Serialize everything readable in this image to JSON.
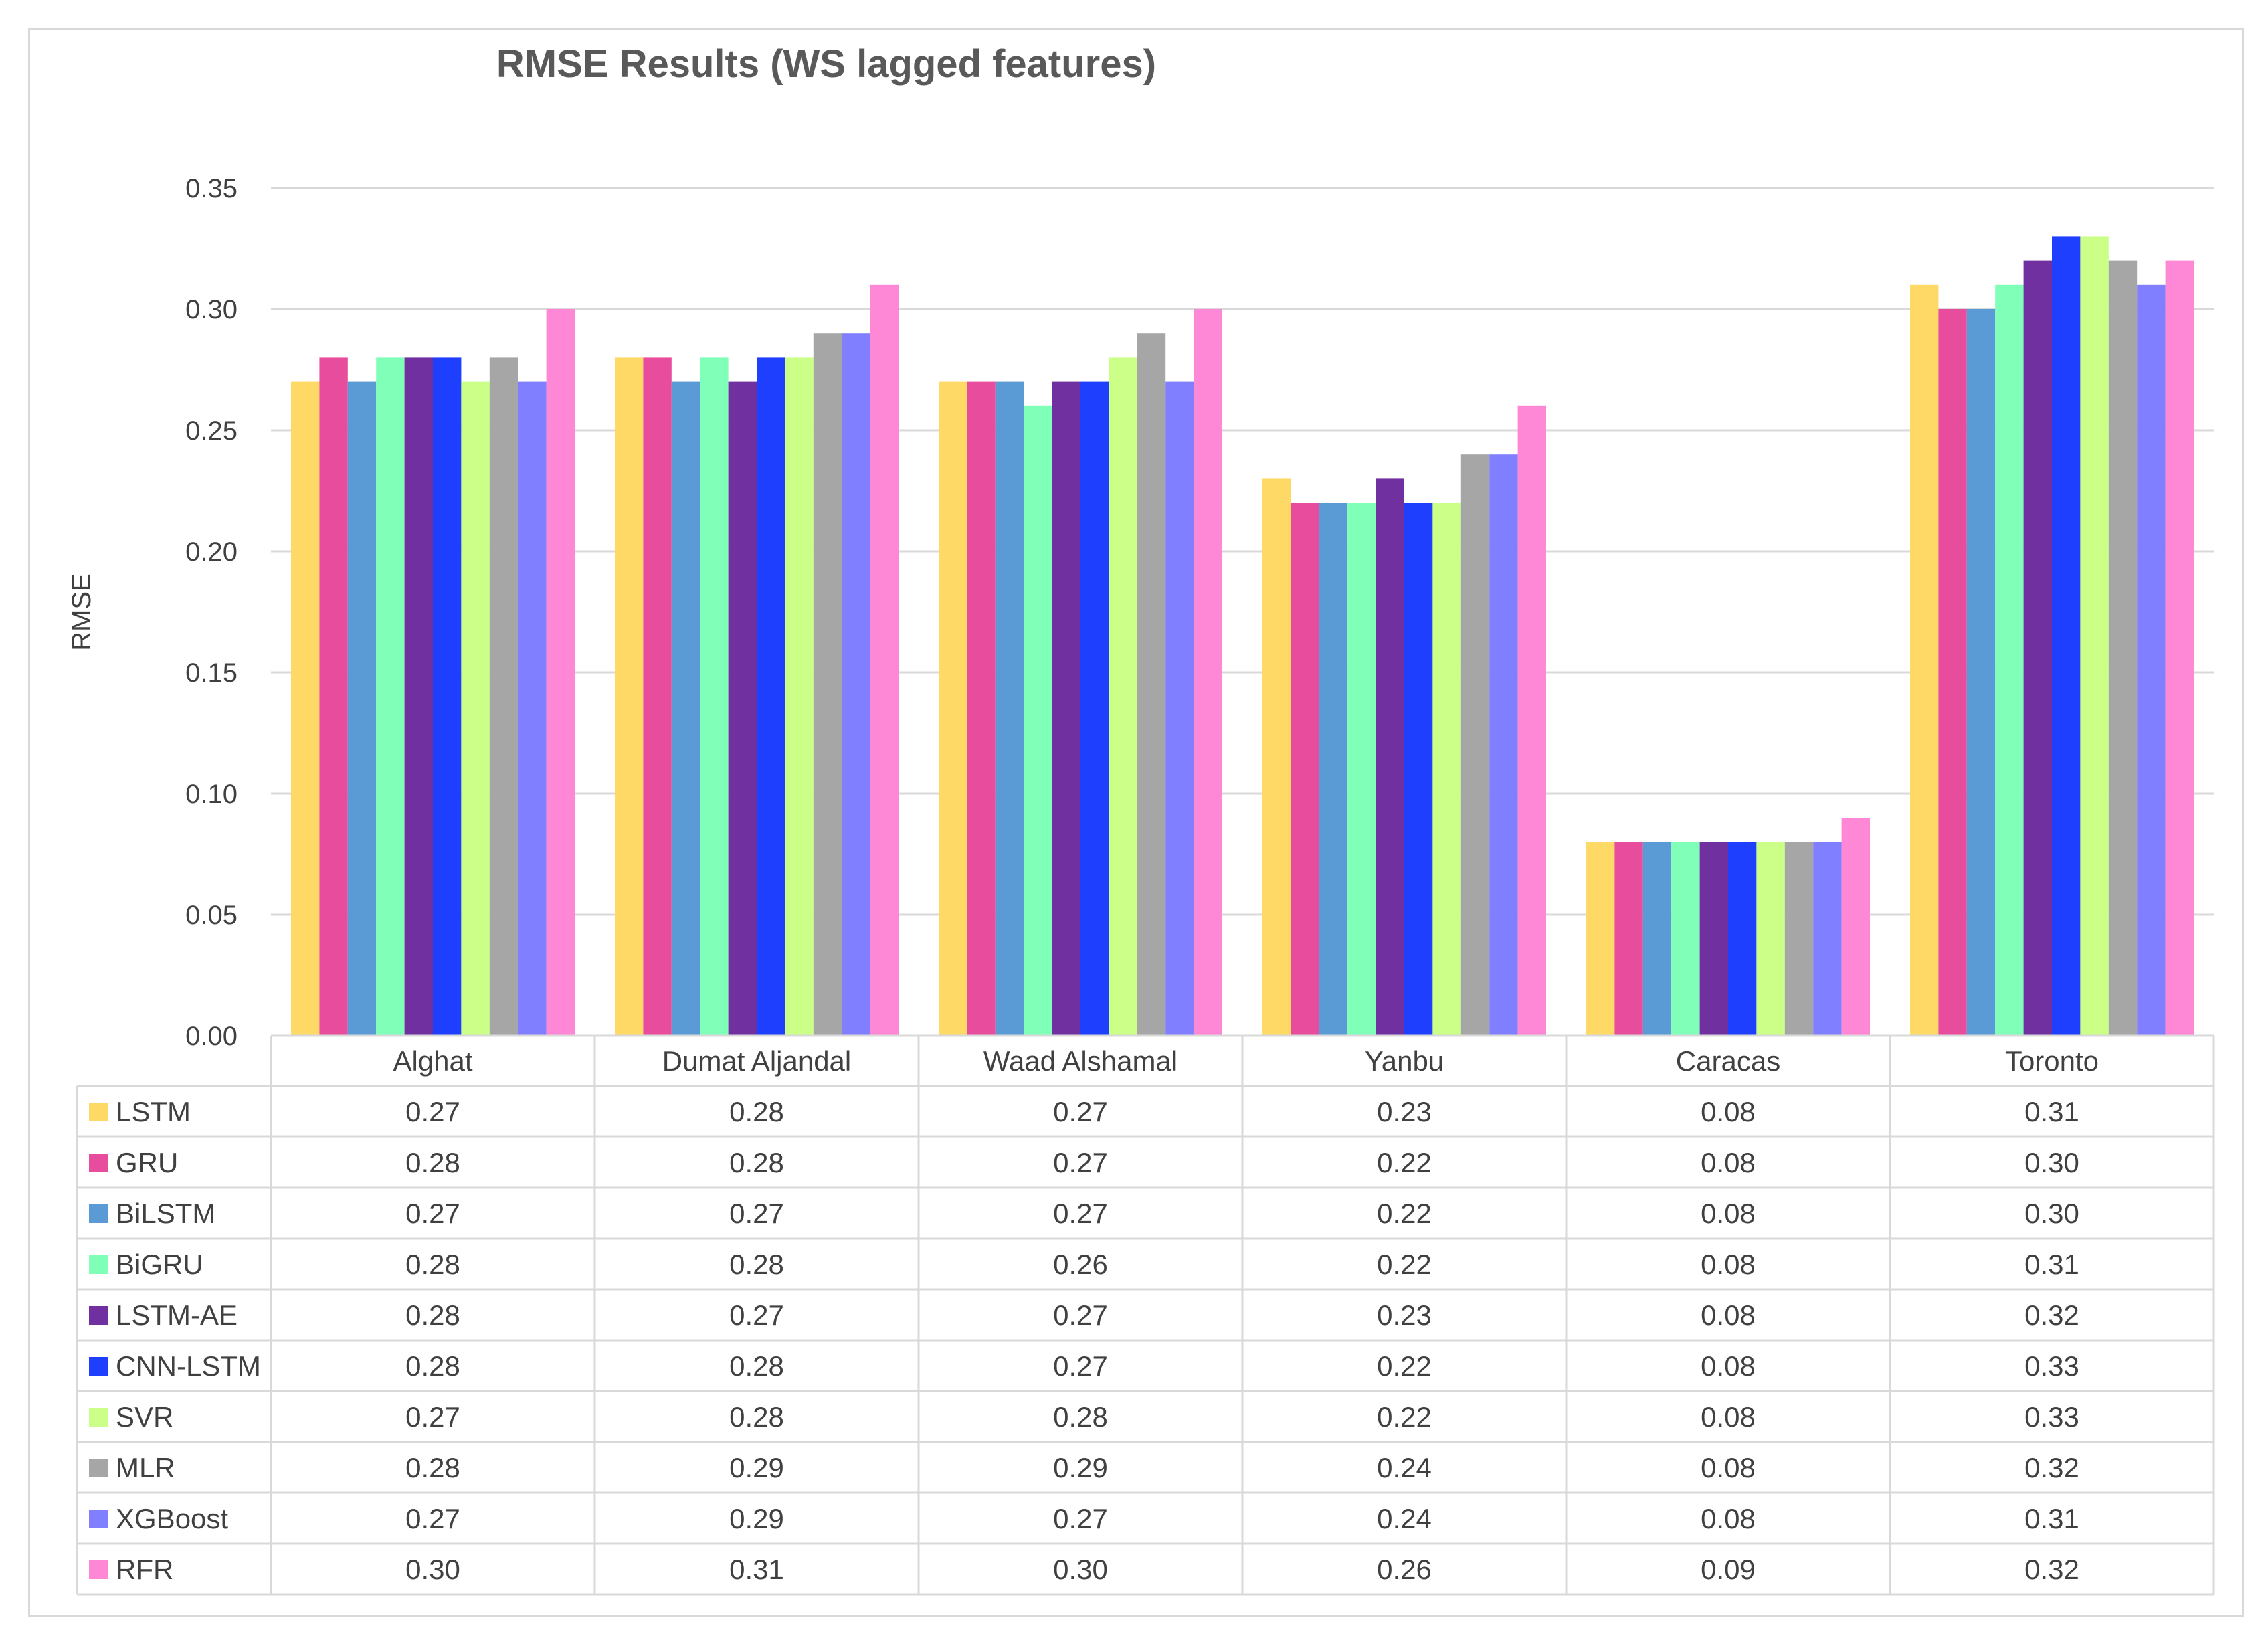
{
  "chart_data": {
    "type": "bar",
    "title": "RMSE Results (WS lagged features)",
    "xlabel": "",
    "ylabel": "RMSE",
    "ylim": [
      0,
      0.35
    ],
    "yticks": [
      "0.00",
      "0.05",
      "0.10",
      "0.15",
      "0.20",
      "0.25",
      "0.30",
      "0.35"
    ],
    "grid": true,
    "legend": "data-table-below",
    "categories": [
      "Alghat",
      "Dumat Aljandal",
      "Waad Alshamal",
      "Yanbu",
      "Caracas",
      "Toronto"
    ],
    "series": [
      {
        "name": "LSTM",
        "color": "#FFD966",
        "values": [
          0.27,
          0.28,
          0.27,
          0.23,
          0.08,
          0.31
        ],
        "labels": [
          "0.27",
          "0.28",
          "0.27",
          "0.23",
          "0.08",
          "0.31"
        ]
      },
      {
        "name": "GRU",
        "color": "#E84C9C",
        "values": [
          0.28,
          0.28,
          0.27,
          0.22,
          0.08,
          0.3
        ],
        "labels": [
          "0.28",
          "0.28",
          "0.27",
          "0.22",
          "0.08",
          "0.30"
        ]
      },
      {
        "name": "BiLSTM",
        "color": "#5B9BD5",
        "values": [
          0.27,
          0.27,
          0.27,
          0.22,
          0.08,
          0.3
        ],
        "labels": [
          "0.27",
          "0.27",
          "0.27",
          "0.22",
          "0.08",
          "0.30"
        ]
      },
      {
        "name": "BiGRU",
        "color": "#80FFB8",
        "values": [
          0.28,
          0.28,
          0.26,
          0.22,
          0.08,
          0.31
        ],
        "labels": [
          "0.28",
          "0.28",
          "0.26",
          "0.22",
          "0.08",
          "0.31"
        ]
      },
      {
        "name": "LSTM-AE",
        "color": "#7030A0",
        "values": [
          0.28,
          0.27,
          0.27,
          0.23,
          0.08,
          0.32
        ],
        "labels": [
          "0.28",
          "0.27",
          "0.27",
          "0.23",
          "0.08",
          "0.32"
        ]
      },
      {
        "name": "CNN-LSTM",
        "color": "#1F3FFF",
        "values": [
          0.28,
          0.28,
          0.27,
          0.22,
          0.08,
          0.33
        ],
        "labels": [
          "0.28",
          "0.28",
          "0.27",
          "0.22",
          "0.08",
          "0.33"
        ]
      },
      {
        "name": "SVR",
        "color": "#CCFF88",
        "values": [
          0.27,
          0.28,
          0.28,
          0.22,
          0.08,
          0.33
        ],
        "labels": [
          "0.27",
          "0.28",
          "0.28",
          "0.22",
          "0.08",
          "0.33"
        ]
      },
      {
        "name": "MLR",
        "color": "#A6A6A6",
        "values": [
          0.28,
          0.29,
          0.29,
          0.24,
          0.08,
          0.32
        ],
        "labels": [
          "0.28",
          "0.29",
          "0.29",
          "0.24",
          "0.08",
          "0.32"
        ]
      },
      {
        "name": "XGBoost",
        "color": "#7F7FFF",
        "values": [
          0.27,
          0.29,
          0.27,
          0.24,
          0.08,
          0.31
        ],
        "labels": [
          "0.27",
          "0.29",
          "0.27",
          "0.24",
          "0.08",
          "0.31"
        ]
      },
      {
        "name": "RFR",
        "color": "#FF88D6",
        "values": [
          0.3,
          0.31,
          0.3,
          0.26,
          0.09,
          0.32
        ],
        "labels": [
          "0.30",
          "0.31",
          "0.30",
          "0.26",
          "0.09",
          "0.32"
        ]
      }
    ]
  }
}
